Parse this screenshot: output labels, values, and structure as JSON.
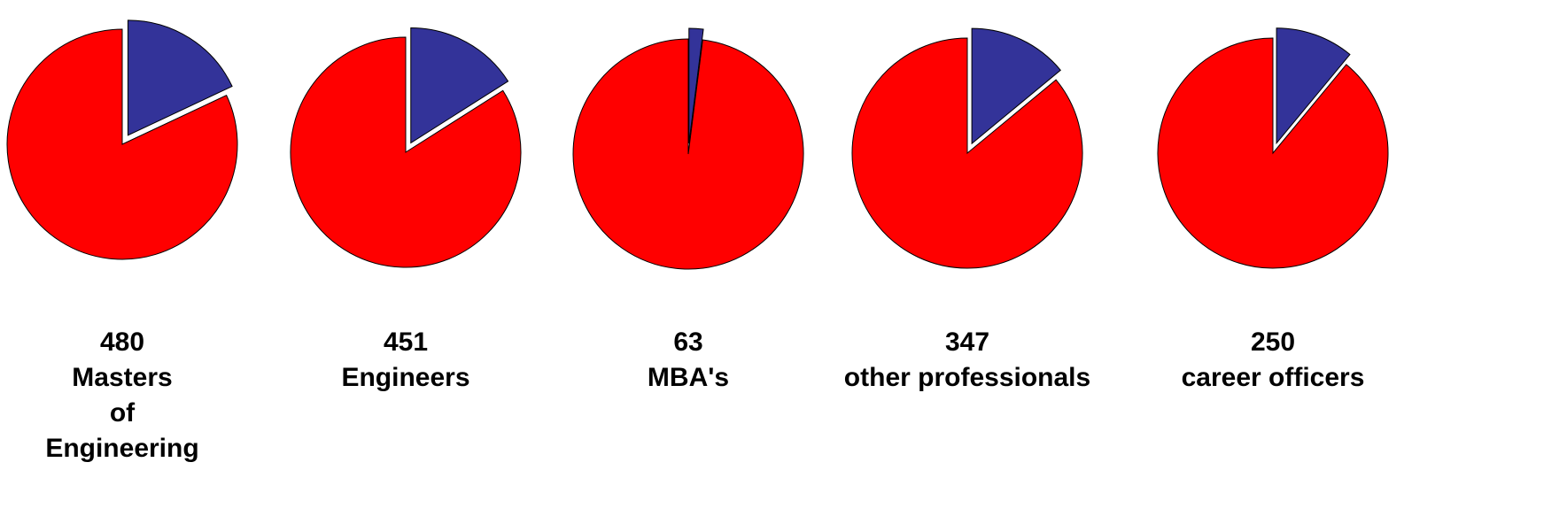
{
  "chart_data": [
    {
      "type": "pie",
      "count": 480,
      "label_lines": [
        "Masters",
        "of",
        "Engineering"
      ],
      "values": [
        18,
        82
      ],
      "colors": [
        "#333399",
        "#ff0000"
      ]
    },
    {
      "type": "pie",
      "count": 451,
      "label_lines": [
        "Engineers"
      ],
      "values": [
        16,
        84
      ],
      "colors": [
        "#333399",
        "#ff0000"
      ]
    },
    {
      "type": "pie",
      "count": 63,
      "label_lines": [
        "MBA's"
      ],
      "values": [
        2,
        98
      ],
      "colors": [
        "#333399",
        "#ff0000"
      ]
    },
    {
      "type": "pie",
      "count": 347,
      "label_lines": [
        "other professionals"
      ],
      "values": [
        14,
        86
      ],
      "colors": [
        "#333399",
        "#ff0000"
      ]
    },
    {
      "type": "pie",
      "count": 250,
      "label_lines": [
        "career officers"
      ],
      "values": [
        11,
        89
      ],
      "colors": [
        "#333399",
        "#ff0000"
      ]
    }
  ]
}
